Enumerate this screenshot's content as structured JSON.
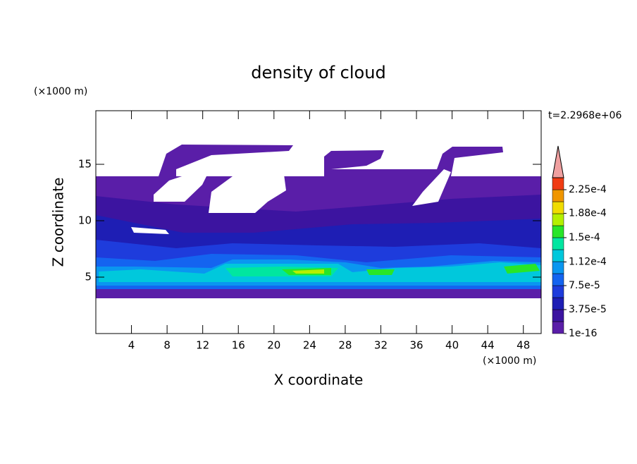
{
  "chart_data": {
    "type": "contour",
    "title": "density of cloud",
    "xlabel": "X coordinate",
    "ylabel": "Z coordinate",
    "x_unit": "(×1000 m)",
    "y_unit": "(×1000 m)",
    "annotation": "t=2.2968e+06",
    "xlim": [
      0,
      50
    ],
    "ylim": [
      0,
      19.75
    ],
    "xticks": [
      4,
      8,
      12,
      16,
      20,
      24,
      28,
      32,
      36,
      40,
      44,
      48
    ],
    "yticks": [
      5,
      10,
      15
    ],
    "colorbar": {
      "levels": [
        1e-16,
        1.875e-05,
        3.75e-05,
        5.625e-05,
        7.5e-05,
        9.375e-05,
        0.0001125,
        0.00013125,
        0.00015,
        0.00016875,
        0.0001875,
        0.00020625,
        0.000225,
        0.00024375
      ],
      "colors": [
        "#5a1ea8",
        "#3c14a0",
        "#1e1eb4",
        "#1e3cdc",
        "#1464f0",
        "#0a96f0",
        "#00c8dc",
        "#00e6a0",
        "#28e628",
        "#b4f000",
        "#f0dc00",
        "#f09600",
        "#f03c14"
      ],
      "extend_color": "#f0a0a0",
      "ticks": [
        {
          "value": 1e-16,
          "label": "1e-16"
        },
        {
          "value": 3.75e-05,
          "label": "3.75e-5"
        },
        {
          "value": 7.5e-05,
          "label": "7.5e-5"
        },
        {
          "value": 0.000112,
          "label": "1.12e-4"
        },
        {
          "value": 0.00015,
          "label": "1.5e-4"
        },
        {
          "value": 0.000188,
          "label": "1.88e-4"
        },
        {
          "value": 0.000225,
          "label": "2.25e-4"
        }
      ]
    }
  }
}
